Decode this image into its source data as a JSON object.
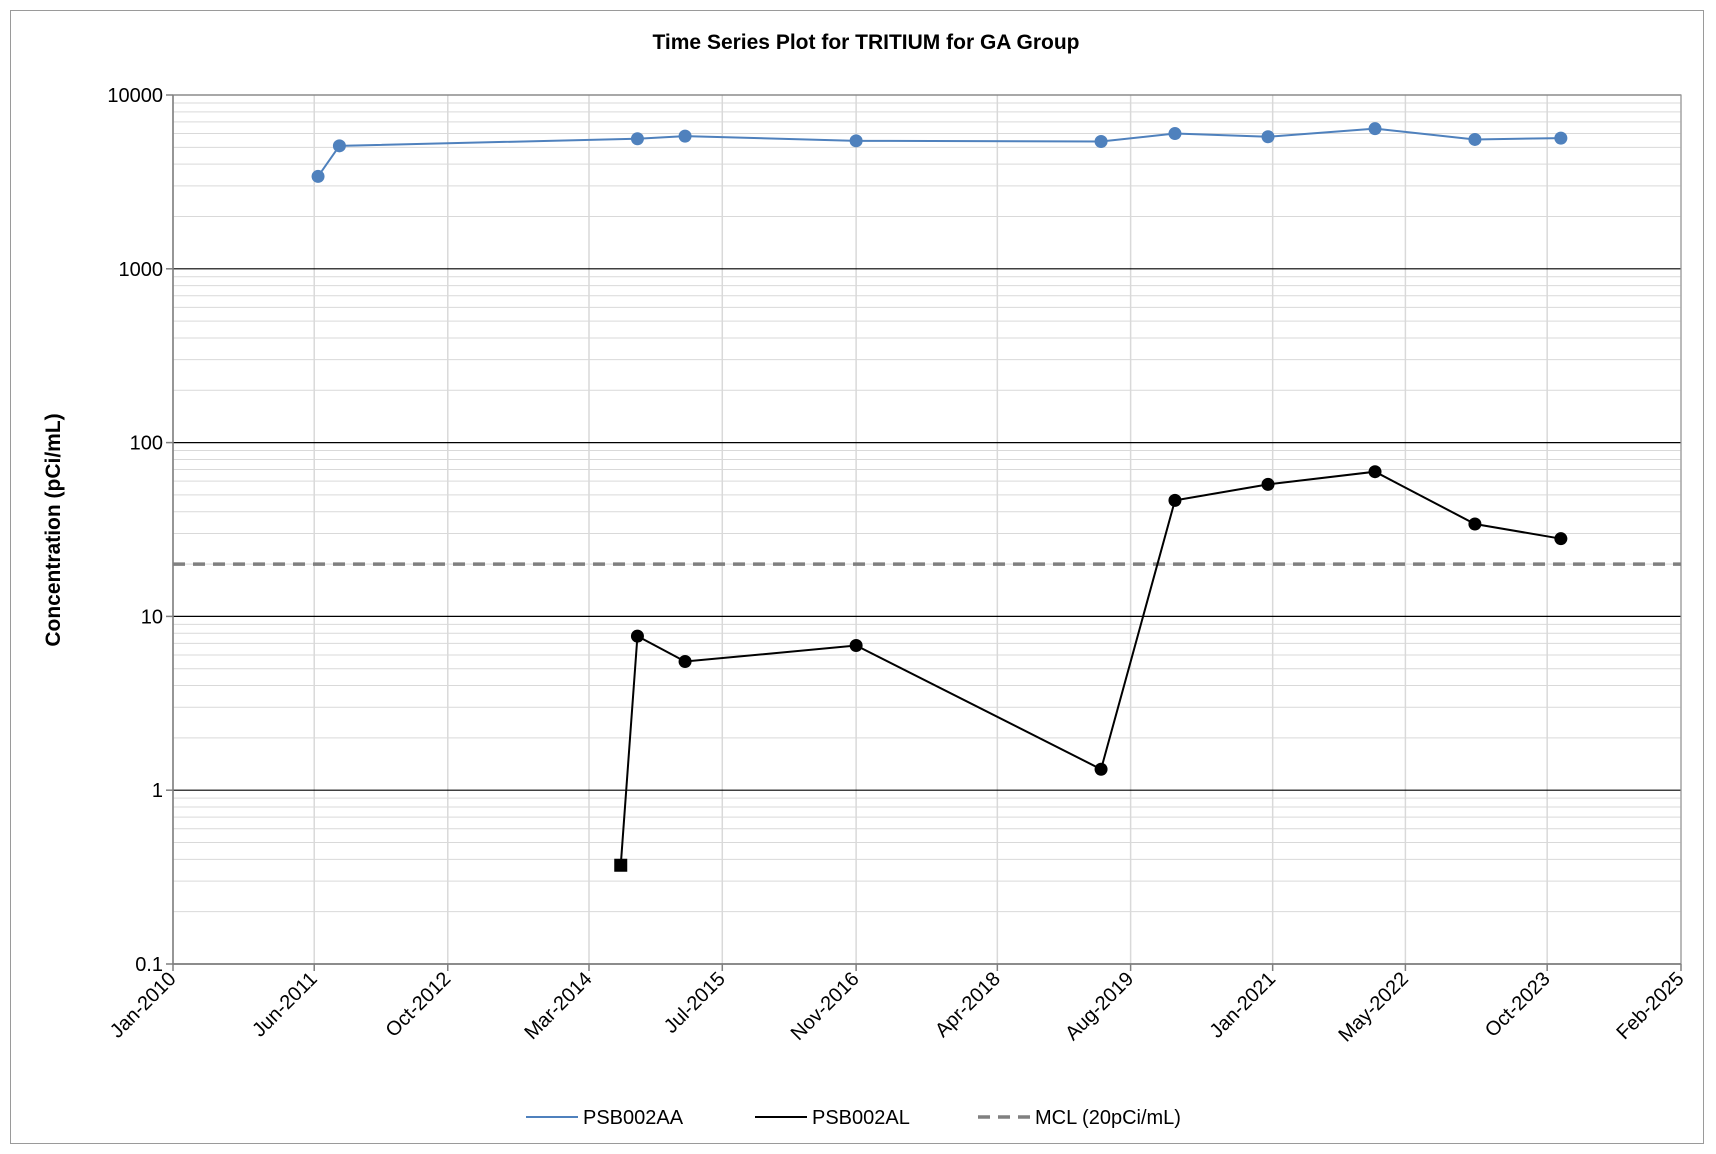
{
  "chart_data": {
    "type": "line",
    "title": "Time Series Plot for TRITIUM for GA Group",
    "xlabel": "",
    "ylabel": "Concentration (pCi/mL)",
    "yscale": "log",
    "ylim": [
      0.1,
      10000
    ],
    "xlim": [
      "2010-01-01",
      "2025-02-01"
    ],
    "x_tick_labels": [
      "Jan-2010",
      "Jun-2011",
      "Oct-2012",
      "Mar-2014",
      "Jul-2015",
      "Nov-2016",
      "Apr-2018",
      "Aug-2019",
      "Jan-2021",
      "May-2022",
      "Oct-2023",
      "Feb-2025"
    ],
    "x_tick_dates": [
      "2010-01-01",
      "2011-06-01",
      "2012-10-01",
      "2014-03-01",
      "2015-07-01",
      "2016-11-01",
      "2018-04-01",
      "2019-08-01",
      "2021-01-01",
      "2022-05-01",
      "2023-10-01",
      "2025-02-01"
    ],
    "y_tick_labels": [
      "0.1",
      "1",
      "10",
      "100",
      "1000",
      "10000"
    ],
    "y_tick_values": [
      0.1,
      1,
      10,
      100,
      1000,
      10000
    ],
    "grid": true,
    "legend_position": "bottom",
    "series": [
      {
        "name": "PSB002AA",
        "color": "#4f81bd",
        "marker": "circle",
        "x": [
          "2011-06-15",
          "2011-09-01",
          "2014-08-25",
          "2015-02-15",
          "2016-11-01",
          "2019-04-15",
          "2020-01-10",
          "2020-12-15",
          "2022-01-10",
          "2023-01-10",
          "2023-11-20"
        ],
        "y": [
          3400,
          5100,
          5600,
          5800,
          5450,
          5400,
          6000,
          5750,
          6400,
          5550,
          5650
        ]
      },
      {
        "name": "PSB002AL",
        "color": "#000000",
        "marker": "circle",
        "x": [
          "2014-06-25",
          "2014-08-25",
          "2015-02-15",
          "2016-11-01",
          "2019-04-15",
          "2020-01-10",
          "2020-12-15",
          "2022-01-10",
          "2023-01-10",
          "2023-11-20"
        ],
        "y": [
          0.37,
          7.7,
          5.5,
          6.8,
          1.32,
          46.5,
          57.5,
          68,
          34,
          28
        ],
        "marker_overrides": [
          {
            "index": 0,
            "marker": "square"
          }
        ]
      }
    ],
    "reference_lines": [
      {
        "name": "MCL (20pCi/mL)",
        "y": 20,
        "color": "#808080",
        "style": "dashed"
      }
    ]
  }
}
